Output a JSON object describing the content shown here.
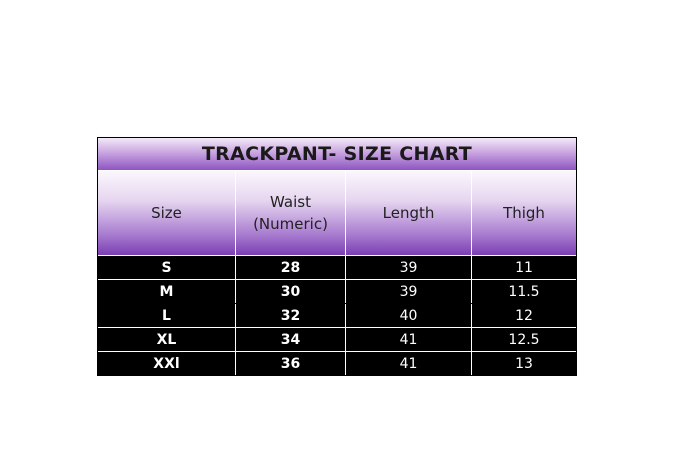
{
  "title": "TRACKPANT- SIZE CHART",
  "headers": [
    "Size",
    "Waist (Numeric)",
    "Length",
    "Thigh"
  ],
  "rows": [
    [
      "S",
      "28",
      "39",
      "11"
    ],
    [
      "M",
      "30",
      "39",
      "11.5"
    ],
    [
      "L",
      "32",
      "40",
      "12"
    ],
    [
      "XL",
      "34",
      "41",
      "12.5"
    ],
    [
      "XXl",
      "36",
      "41",
      "13"
    ]
  ],
  "colors": {
    "header_purple": "#7b3fb4",
    "body_bg": "#000000",
    "body_text": "#ffffff"
  }
}
